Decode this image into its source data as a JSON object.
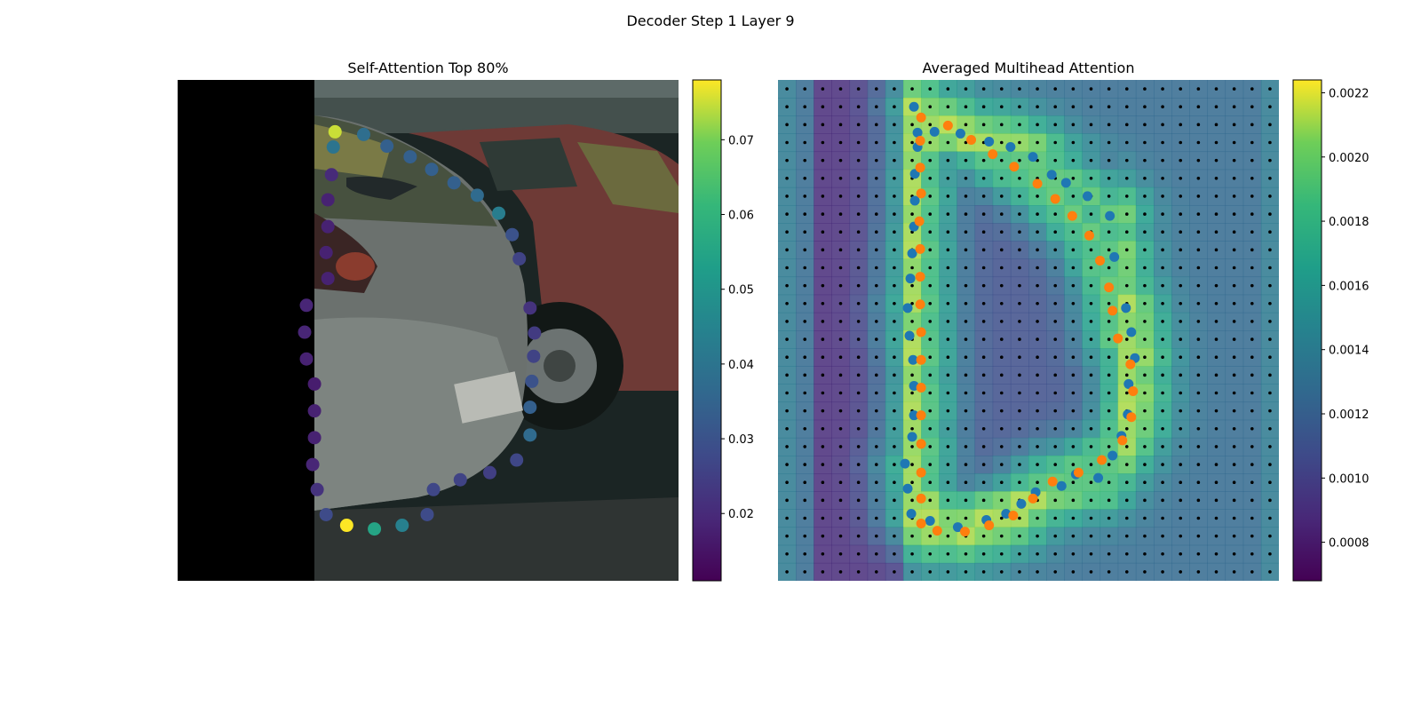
{
  "figure": {
    "suptitle": "Decoder Step 1 Layer 9"
  },
  "chart_data": [
    {
      "type": "scatter",
      "title": "Self-Attention Top 80%",
      "background": "photo of parked grey hatchback with a red car behind; left ~27% padded black",
      "xlim": [
        0,
        56
      ],
      "ylim": [
        56,
        0
      ],
      "colormap": "viridis",
      "colorbar": {
        "min": 0.011,
        "max": 0.078,
        "ticks": [
          0.02,
          0.03,
          0.04,
          0.05,
          0.06,
          0.07
        ],
        "tick_labels": [
          "0.02",
          "0.03",
          "0.04",
          "0.05",
          "0.06",
          "0.07"
        ]
      },
      "points": [
        {
          "x": 17.4,
          "y": 7.5,
          "v": 0.04
        },
        {
          "x": 17.2,
          "y": 10.6,
          "v": 0.02
        },
        {
          "x": 16.8,
          "y": 13.4,
          "v": 0.018
        },
        {
          "x": 16.8,
          "y": 16.4,
          "v": 0.018
        },
        {
          "x": 16.6,
          "y": 19.3,
          "v": 0.018
        },
        {
          "x": 16.8,
          "y": 22.2,
          "v": 0.018
        },
        {
          "x": 14.4,
          "y": 25.2,
          "v": 0.019
        },
        {
          "x": 14.2,
          "y": 28.2,
          "v": 0.019
        },
        {
          "x": 14.4,
          "y": 31.2,
          "v": 0.018
        },
        {
          "x": 15.3,
          "y": 34.0,
          "v": 0.017
        },
        {
          "x": 15.3,
          "y": 37.0,
          "v": 0.018
        },
        {
          "x": 15.3,
          "y": 40.0,
          "v": 0.018
        },
        {
          "x": 15.1,
          "y": 43.0,
          "v": 0.019
        },
        {
          "x": 15.6,
          "y": 45.8,
          "v": 0.022
        },
        {
          "x": 16.6,
          "y": 48.6,
          "v": 0.028
        },
        {
          "x": 18.9,
          "y": 49.8,
          "v": 0.078
        },
        {
          "x": 22.0,
          "y": 50.2,
          "v": 0.055
        },
        {
          "x": 25.1,
          "y": 49.8,
          "v": 0.044
        },
        {
          "x": 27.9,
          "y": 48.6,
          "v": 0.028
        },
        {
          "x": 28.6,
          "y": 45.8,
          "v": 0.027
        },
        {
          "x": 31.6,
          "y": 44.7,
          "v": 0.026
        },
        {
          "x": 34.9,
          "y": 43.9,
          "v": 0.025
        },
        {
          "x": 37.9,
          "y": 42.5,
          "v": 0.027
        },
        {
          "x": 39.4,
          "y": 39.7,
          "v": 0.037
        },
        {
          "x": 39.4,
          "y": 36.6,
          "v": 0.034
        },
        {
          "x": 39.6,
          "y": 33.7,
          "v": 0.03
        },
        {
          "x": 39.8,
          "y": 30.9,
          "v": 0.026
        },
        {
          "x": 39.9,
          "y": 28.3,
          "v": 0.024
        },
        {
          "x": 39.4,
          "y": 25.5,
          "v": 0.022
        },
        {
          "x": 38.2,
          "y": 20.0,
          "v": 0.026
        },
        {
          "x": 37.4,
          "y": 17.3,
          "v": 0.03
        },
        {
          "x": 35.9,
          "y": 14.9,
          "v": 0.043
        },
        {
          "x": 33.5,
          "y": 12.9,
          "v": 0.037
        },
        {
          "x": 30.9,
          "y": 11.5,
          "v": 0.034
        },
        {
          "x": 28.4,
          "y": 10.0,
          "v": 0.034
        },
        {
          "x": 26.0,
          "y": 8.6,
          "v": 0.034
        },
        {
          "x": 23.4,
          "y": 7.4,
          "v": 0.034
        },
        {
          "x": 20.8,
          "y": 6.1,
          "v": 0.038
        },
        {
          "x": 17.6,
          "y": 5.8,
          "v": 0.075
        }
      ]
    },
    {
      "type": "heatmap",
      "title": "Averaged Multihead Attention",
      "grid": [
        28,
        28
      ],
      "xlim": [
        0,
        56
      ],
      "ylim": [
        56,
        0
      ],
      "colormap": "viridis",
      "colorbar": {
        "min": 0.00068,
        "max": 0.00224,
        "ticks": [
          0.0008,
          0.001,
          0.0012,
          0.0014,
          0.0016,
          0.0018,
          0.002,
          0.0022
        ],
        "tick_labels": [
          "0.0008",
          "0.0010",
          "0.0012",
          "0.0014",
          "0.0016",
          "0.0018",
          "0.0020",
          "0.0022"
        ]
      },
      "series": [
        {
          "color": "#1f77b4",
          "points": [
            [
              15.2,
              3.0
            ],
            [
              15.6,
              5.9
            ],
            [
              17.5,
              5.8
            ],
            [
              20.4,
              6.0
            ],
            [
              23.6,
              6.9
            ],
            [
              26.0,
              7.5
            ],
            [
              28.5,
              8.6
            ],
            [
              30.6,
              10.6
            ],
            [
              32.2,
              11.5
            ],
            [
              34.6,
              13.0
            ],
            [
              37.1,
              15.2
            ],
            [
              37.6,
              19.8
            ],
            [
              38.9,
              25.5
            ],
            [
              39.5,
              28.2
            ],
            [
              39.9,
              31.1
            ],
            [
              39.2,
              34.0
            ],
            [
              39.1,
              37.4
            ],
            [
              38.4,
              39.8
            ],
            [
              37.4,
              42.0
            ],
            [
              35.8,
              44.5
            ],
            [
              33.3,
              44.1
            ],
            [
              31.7,
              45.4
            ],
            [
              28.8,
              46.1
            ],
            [
              27.2,
              47.4
            ],
            [
              25.5,
              48.5
            ],
            [
              23.3,
              49.2
            ],
            [
              20.1,
              50.0
            ],
            [
              17.0,
              49.3
            ],
            [
              14.9,
              48.5
            ],
            [
              14.5,
              45.7
            ],
            [
              14.2,
              42.9
            ],
            [
              15.0,
              39.9
            ],
            [
              15.2,
              37.5
            ],
            [
              15.2,
              34.2
            ],
            [
              15.1,
              31.3
            ],
            [
              14.7,
              28.6
            ],
            [
              14.5,
              25.5
            ],
            [
              14.8,
              22.2
            ],
            [
              15.0,
              19.4
            ],
            [
              15.2,
              16.4
            ],
            [
              15.3,
              13.5
            ],
            [
              15.3,
              10.5
            ],
            [
              15.6,
              7.5
            ]
          ]
        },
        {
          "color": "#ff7f0e",
          "points": [
            [
              16.0,
              4.2
            ],
            [
              19.0,
              5.1
            ],
            [
              21.6,
              6.7
            ],
            [
              24.0,
              8.3
            ],
            [
              26.4,
              9.7
            ],
            [
              29.0,
              11.6
            ],
            [
              31.0,
              13.3
            ],
            [
              32.9,
              15.2
            ],
            [
              34.8,
              17.4
            ],
            [
              36.0,
              20.2
            ],
            [
              37.0,
              23.2
            ],
            [
              37.4,
              25.8
            ],
            [
              38.0,
              28.9
            ],
            [
              39.4,
              31.8
            ],
            [
              39.7,
              34.8
            ],
            [
              39.5,
              37.7
            ],
            [
              38.5,
              40.3
            ],
            [
              36.2,
              42.5
            ],
            [
              33.6,
              43.9
            ],
            [
              30.7,
              44.9
            ],
            [
              28.5,
              46.8
            ],
            [
              26.3,
              48.7
            ],
            [
              23.6,
              49.8
            ],
            [
              20.9,
              50.5
            ],
            [
              17.8,
              50.4
            ],
            [
              16.0,
              49.6
            ],
            [
              16.0,
              46.8
            ],
            [
              16.0,
              43.9
            ],
            [
              16.0,
              40.7
            ],
            [
              16.0,
              37.5
            ],
            [
              16.0,
              34.4
            ],
            [
              16.0,
              31.3
            ],
            [
              16.0,
              28.2
            ],
            [
              15.9,
              25.1
            ],
            [
              15.9,
              22.0
            ],
            [
              15.9,
              18.9
            ],
            [
              15.8,
              15.8
            ],
            [
              16.0,
              12.7
            ],
            [
              15.9,
              9.8
            ],
            [
              15.9,
              6.8
            ]
          ]
        }
      ]
    }
  ]
}
